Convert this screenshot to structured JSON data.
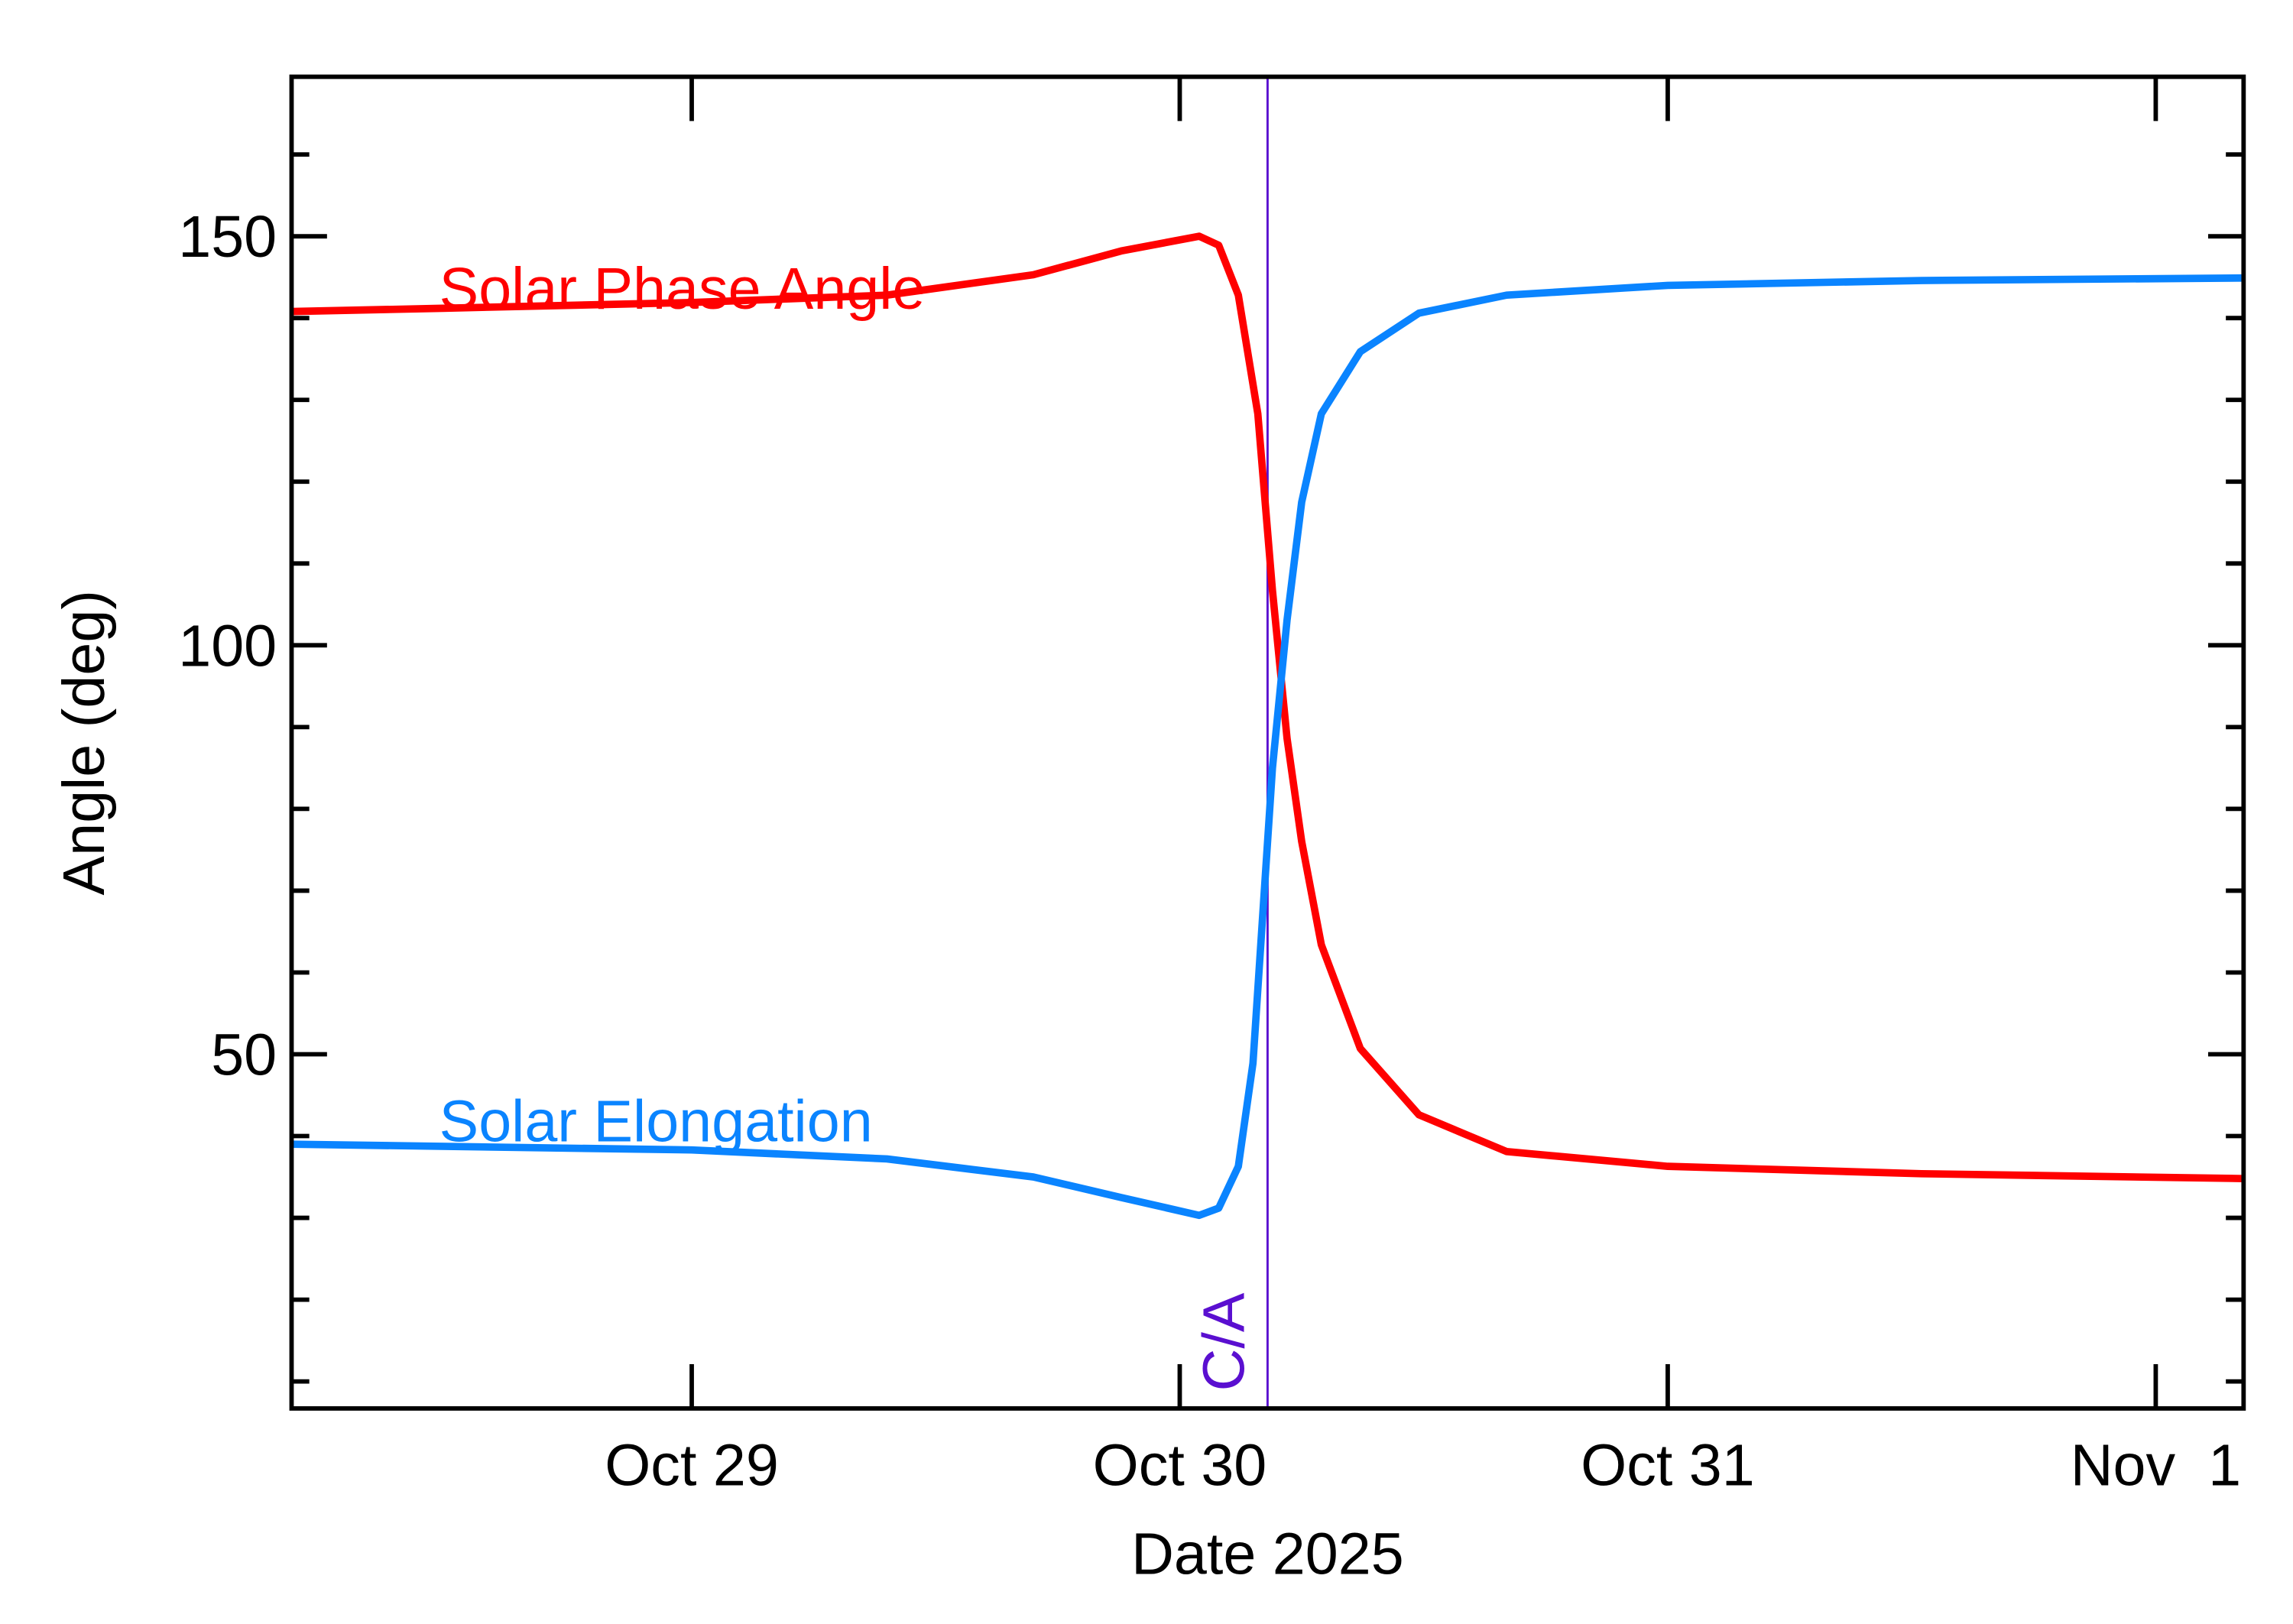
{
  "chart_data": {
    "type": "line",
    "x_label": "Date 2025",
    "y_label": "Angle (deg)",
    "xlim": [
      28.18,
      32.18
    ],
    "ylim": [
      6.7,
      169.5
    ],
    "xticks": [
      {
        "value": 29,
        "label": "Oct 29"
      },
      {
        "value": 30,
        "label": "Oct 30"
      },
      {
        "value": 31,
        "label": "Oct 31"
      },
      {
        "value": 32,
        "label": "Nov  1"
      }
    ],
    "yticks": [
      50,
      100,
      150
    ],
    "yminor": [
      10,
      20,
      30,
      40,
      60,
      70,
      80,
      90,
      110,
      120,
      130,
      140,
      160
    ],
    "marker": {
      "x": 30.18,
      "label": "C/A",
      "color": "#5a0fd0"
    },
    "series": [
      {
        "name": "Solar Phase Angle",
        "color": "#ff0000",
        "x": [
          28.18,
          28.49,
          29.0,
          29.4,
          29.7,
          29.88,
          30.04,
          30.08,
          30.12,
          30.16,
          30.19,
          30.22,
          30.25,
          30.29,
          30.37,
          30.49,
          30.67,
          31.0,
          31.52,
          32.18
        ],
        "values": [
          140.8,
          141.2,
          141.9,
          142.8,
          145.3,
          148.2,
          150,
          148.9,
          142.8,
          128.3,
          106.7,
          88.6,
          76.0,
          63.4,
          50.7,
          42.6,
          38.1,
          36.3,
          35.4,
          34.8
        ]
      },
      {
        "name": "Solar Elongation",
        "color": "#0a84ff",
        "x": [
          28.18,
          29.0,
          29.4,
          29.7,
          29.88,
          30.04,
          30.08,
          30.12,
          30.15,
          30.17,
          30.19,
          30.22,
          30.25,
          30.29,
          30.37,
          30.49,
          30.67,
          31.0,
          31.52,
          32.18
        ],
        "values": [
          39.0,
          38.3,
          37.2,
          35.0,
          32.5,
          30.3,
          31.2,
          36.3,
          48.9,
          67.0,
          85.0,
          103.1,
          117.5,
          128.3,
          135.9,
          140.6,
          142.8,
          144.0,
          144.6,
          144.9
        ]
      }
    ]
  }
}
